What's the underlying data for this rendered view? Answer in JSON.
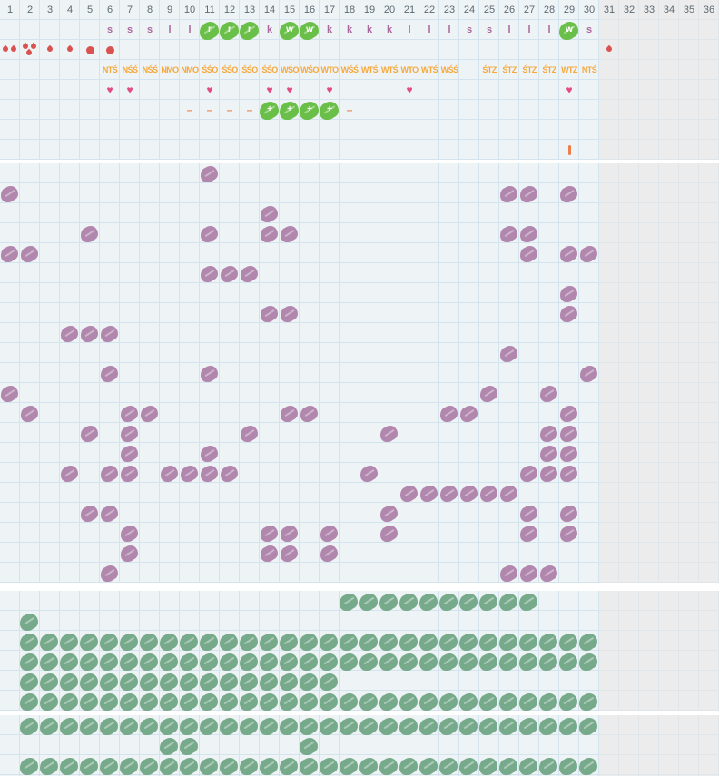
{
  "columns": {
    "labels": [
      "1",
      "2",
      "3",
      "4",
      "5",
      "6",
      "7",
      "8",
      "9",
      "10",
      "11",
      "12",
      "13",
      "14",
      "15",
      "16",
      "17",
      "18",
      "19",
      "20",
      "21",
      "22",
      "23",
      "24",
      "25",
      "26",
      "27",
      "28",
      "29",
      "30",
      "31",
      "32",
      "33",
      "34",
      "35",
      "36"
    ],
    "active_count": 30
  },
  "header_rows": {
    "letters": [
      {
        "col": 6,
        "ch": "s",
        "boxed": false
      },
      {
        "col": 7,
        "ch": "s",
        "boxed": false
      },
      {
        "col": 8,
        "ch": "s",
        "boxed": false
      },
      {
        "col": 9,
        "ch": "l",
        "boxed": false
      },
      {
        "col": 10,
        "ch": "l",
        "boxed": false
      },
      {
        "col": 11,
        "ch": "r",
        "boxed": true
      },
      {
        "col": 12,
        "ch": "r",
        "boxed": true
      },
      {
        "col": 13,
        "ch": "r",
        "boxed": true
      },
      {
        "col": 14,
        "ch": "k",
        "boxed": false
      },
      {
        "col": 15,
        "ch": "w",
        "boxed": true
      },
      {
        "col": 16,
        "ch": "w",
        "boxed": true
      },
      {
        "col": 17,
        "ch": "k",
        "boxed": false
      },
      {
        "col": 18,
        "ch": "k",
        "boxed": false
      },
      {
        "col": 19,
        "ch": "k",
        "boxed": false
      },
      {
        "col": 20,
        "ch": "k",
        "boxed": false
      },
      {
        "col": 21,
        "ch": "l",
        "boxed": false
      },
      {
        "col": 22,
        "ch": "l",
        "boxed": false
      },
      {
        "col": 23,
        "ch": "l",
        "boxed": false
      },
      {
        "col": 24,
        "ch": "s",
        "boxed": false
      },
      {
        "col": 25,
        "ch": "s",
        "boxed": false
      },
      {
        "col": 26,
        "ch": "l",
        "boxed": false
      },
      {
        "col": 27,
        "ch": "l",
        "boxed": false
      },
      {
        "col": 28,
        "ch": "l",
        "boxed": false
      },
      {
        "col": 29,
        "ch": "w",
        "boxed": true
      },
      {
        "col": 30,
        "ch": "s",
        "boxed": false
      }
    ],
    "drops": [
      {
        "col": 1,
        "kind": "double"
      },
      {
        "col": 2,
        "kind": "triple"
      },
      {
        "col": 3,
        "kind": "single"
      },
      {
        "col": 4,
        "kind": "single"
      },
      {
        "col": 5,
        "kind": "dot"
      },
      {
        "col": 6,
        "kind": "dot"
      },
      {
        "col": 31,
        "kind": "single"
      }
    ],
    "codes": [
      {
        "col": 6,
        "text": "NTŚ"
      },
      {
        "col": 7,
        "text": "NŚŚ"
      },
      {
        "col": 8,
        "text": "NŚŚ"
      },
      {
        "col": 9,
        "text": "NMO"
      },
      {
        "col": 10,
        "text": "NMO"
      },
      {
        "col": 11,
        "text": "ŚŚO"
      },
      {
        "col": 12,
        "text": "ŚŚO"
      },
      {
        "col": 13,
        "text": "ŚŚO"
      },
      {
        "col": 14,
        "text": "ŚŚO"
      },
      {
        "col": 15,
        "text": "WŚO"
      },
      {
        "col": 16,
        "text": "WŚO"
      },
      {
        "col": 17,
        "text": "WTO"
      },
      {
        "col": 18,
        "text": "WŚŚ"
      },
      {
        "col": 19,
        "text": "WTŚ"
      },
      {
        "col": 20,
        "text": "WTŚ"
      },
      {
        "col": 21,
        "text": "WTO"
      },
      {
        "col": 22,
        "text": "WTŚ"
      },
      {
        "col": 23,
        "text": "WŚŚ"
      },
      {
        "col": 25,
        "text": "ŚTZ"
      },
      {
        "col": 26,
        "text": "ŚTZ"
      },
      {
        "col": 27,
        "text": "ŚTZ"
      },
      {
        "col": 28,
        "text": "ŚTZ"
      },
      {
        "col": 29,
        "text": "WTZ"
      },
      {
        "col": 30,
        "text": "NTŚ"
      }
    ],
    "hearts_cols": [
      6,
      7,
      11,
      14,
      15,
      17,
      21,
      29
    ],
    "dash_cols": [
      10,
      11,
      12,
      13,
      18
    ],
    "plus_cols": [
      14,
      15,
      16,
      17
    ],
    "plus_char": "+",
    "dash_char": "–",
    "heart_char": "♥",
    "tick_cols": [
      29
    ]
  },
  "mid_section": {
    "rows": [
      {
        "row": 1,
        "cols": [
          11
        ]
      },
      {
        "row": 2,
        "cols": [
          1,
          26,
          27,
          29
        ]
      },
      {
        "row": 3,
        "cols": [
          14
        ]
      },
      {
        "row": 4,
        "cols": [
          5,
          11,
          14,
          15,
          26,
          27
        ]
      },
      {
        "row": 5,
        "cols": [
          1,
          2,
          27,
          29,
          30
        ]
      },
      {
        "row": 6,
        "cols": [
          11,
          12,
          13
        ]
      },
      {
        "row": 7,
        "cols": [
          29
        ]
      },
      {
        "row": 8,
        "cols": [
          14,
          15,
          29
        ]
      },
      {
        "row": 9,
        "cols": [
          4,
          5,
          6
        ]
      },
      {
        "row": 10,
        "cols": [
          26
        ]
      },
      {
        "row": 11,
        "cols": [
          6,
          11,
          30
        ]
      },
      {
        "row": 12,
        "cols": [
          1,
          25,
          28
        ]
      },
      {
        "row": 13,
        "cols": [
          2,
          7,
          8,
          15,
          16,
          23,
          24,
          29
        ]
      },
      {
        "row": 14,
        "cols": [
          5,
          7,
          13,
          20,
          28,
          29
        ]
      },
      {
        "row": 15,
        "cols": [
          7,
          11,
          28,
          29
        ]
      },
      {
        "row": 16,
        "cols": [
          4,
          6,
          7,
          9,
          10,
          11,
          12,
          19,
          27,
          28,
          29
        ]
      },
      {
        "row": 17,
        "cols": [
          21,
          22,
          23,
          24,
          25,
          26
        ]
      },
      {
        "row": 18,
        "cols": [
          5,
          6,
          20,
          27,
          29
        ]
      },
      {
        "row": 19,
        "cols": [
          7,
          14,
          15,
          17,
          20,
          27,
          29
        ]
      },
      {
        "row": 20,
        "cols": [
          7,
          14,
          15,
          17
        ]
      },
      {
        "row": 21,
        "cols": [
          6,
          26,
          27,
          28
        ]
      }
    ]
  },
  "dense_top_section": {
    "rows": [
      {
        "row": 1,
        "cols": [
          [
            18,
            27
          ]
        ]
      },
      {
        "row": 2,
        "cols": [
          2
        ]
      },
      {
        "row": 3,
        "cols": [
          [
            2,
            30
          ]
        ]
      },
      {
        "row": 4,
        "cols": [
          [
            2,
            30
          ]
        ]
      },
      {
        "row": 5,
        "cols": [
          [
            2,
            17
          ]
        ]
      },
      {
        "row": 6,
        "cols": [
          [
            2,
            30
          ]
        ]
      }
    ]
  },
  "dense_bottom_section": {
    "rows": [
      {
        "row": 1,
        "cols": [
          [
            2,
            30
          ]
        ]
      },
      {
        "row": 2,
        "cols": [
          9,
          10,
          16
        ]
      },
      {
        "row": 3,
        "cols": [
          [
            2,
            30
          ]
        ]
      }
    ]
  },
  "colors": {
    "background_active": "#eef3f6",
    "background_inactive": "#ececec",
    "gridline_active": "#d3e4ee",
    "gridline_inactive": "#dfe5e9",
    "number_text": "#5c6a73",
    "letter_text": "#a9679d",
    "code_text": "#f6a83d",
    "drop_red": "#d95250",
    "heart_pink": "#e34b80",
    "dash_orange": "#ee8b52",
    "tick_orange": "#ee7e4e",
    "green_header_blob": "#69bf48",
    "purple_blob": "#b287ae",
    "sage_blob": "#76aa8b"
  }
}
